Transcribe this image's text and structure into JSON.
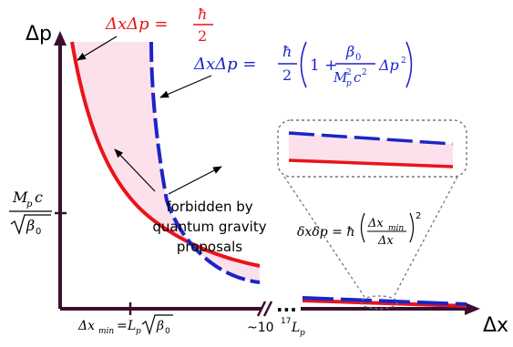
{
  "axes": {
    "y_label": "Δp",
    "x_label": "Δx"
  },
  "y_tick": {
    "numerator": "M",
    "numerator_sub": "p",
    "numerator_tail": "c",
    "denominator": "β",
    "denominator_sub": "0"
  },
  "x_tick_min": {
    "lhs": "Δx",
    "lhs_sub": "min",
    "eq": "=",
    "rhs": "L",
    "rhs_sub": "p",
    "root": "β",
    "root_sub": "0"
  },
  "x_tick_far": {
    "prefix": "~10",
    "exp": "17",
    "var": "L",
    "var_sub": "p"
  },
  "axis_break": {
    "dots": "..."
  },
  "heisenberg": {
    "lhs": "ΔxΔp =",
    "hbar": "ħ",
    "den": "2",
    "color": "#e8141a"
  },
  "gup": {
    "lhs": "ΔxΔp =",
    "hbar": "ħ",
    "den": "2",
    "one_plus": "1 +",
    "beta": "β",
    "beta_sub": "0",
    "den_m": "M",
    "den_m_sub": "p",
    "den_m_sup": "2",
    "den_c": "c",
    "den_c_sup": "2",
    "tail": "Δp",
    "tail_sup": "2",
    "color": "#1c24c8"
  },
  "forbidden": {
    "lines": [
      "forbidden by",
      "quantum gravity",
      "proposals"
    ],
    "fill": "#fce1ec"
  },
  "inset": {
    "lhs": "δxδp = ħ",
    "num": "Δx",
    "num_sub": "min",
    "den": "Δx",
    "exp": "2"
  },
  "colors": {
    "axis": "#3a1030",
    "heisenberg": "#e8141a",
    "gup": "#1c24c8"
  }
}
